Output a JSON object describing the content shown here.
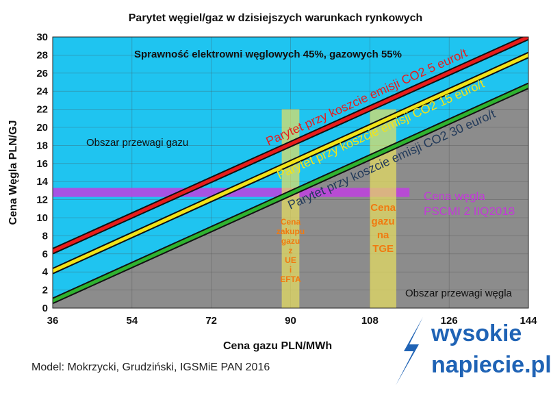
{
  "title": "Parytet węgiel/gaz w dzisiejszych warunkach rynkowych",
  "footer": {
    "model_note": "Model: Mokrzycki, Grudziński, IGSMiE PAN 2016",
    "logo_line1": "wysokie",
    "logo_line2": "napiecie.pl"
  },
  "colors": {
    "gas_area": "#1fc4f0",
    "coal_area": "#8c8c8c",
    "line_co2_5": "#e81c1c",
    "line_co2_15": "#f2e418",
    "line_co2_30": "#2fb32f",
    "coal_price_band": "#c040e0",
    "gas_price_band": "#e8e060",
    "logo": "#1f63b5"
  },
  "chart_data": {
    "type": "line",
    "title": "Parytet węgiel/gaz w dzisiejszych warunkach rynkowych",
    "xlabel": "Cena gazu PLN/MWh",
    "ylabel": "Cena Węgla PLN/GJ",
    "xlim": [
      36,
      144
    ],
    "ylim": [
      0,
      30
    ],
    "x_ticks": [
      36,
      54,
      72,
      90,
      108,
      126,
      144
    ],
    "y_ticks": [
      0,
      2,
      4,
      6,
      8,
      10,
      12,
      14,
      16,
      18,
      20,
      22,
      24,
      26,
      28,
      30
    ],
    "grid": true,
    "series": [
      {
        "name": "Parytet przy koszcie emisji CO2 5 euro/t",
        "x": [
          36,
          144
        ],
        "y": [
          6.3,
          30.0
        ]
      },
      {
        "name": "Parytet przy koszcie emisji CO2 15 euro/t",
        "x": [
          36,
          144
        ],
        "y": [
          4.1,
          28.0
        ]
      },
      {
        "name": "Parytet przy koszcie emisji CO2 30 euro/t",
        "x": [
          36,
          144
        ],
        "y": [
          0.8,
          24.6
        ]
      }
    ],
    "bands": [
      {
        "orientation": "horizontal",
        "from": 12.3,
        "to": 13.3,
        "label": "Cena węgla PSCMI 2 IIQ2018"
      },
      {
        "orientation": "vertical",
        "from": 88,
        "to": 92,
        "top": 22,
        "label": "Cena zakupu gazu z UE i EFTA"
      },
      {
        "orientation": "vertical",
        "from": 108,
        "to": 114,
        "top": 22,
        "label": "Cena gazu na TGE"
      }
    ],
    "annotations": {
      "efficiency": "Sprawność elektrowni węglowych 45%, gazowych 55%",
      "gas_region": "Obszar przewagi gazu",
      "coal_region": "Obszar przewagi węgla"
    }
  }
}
